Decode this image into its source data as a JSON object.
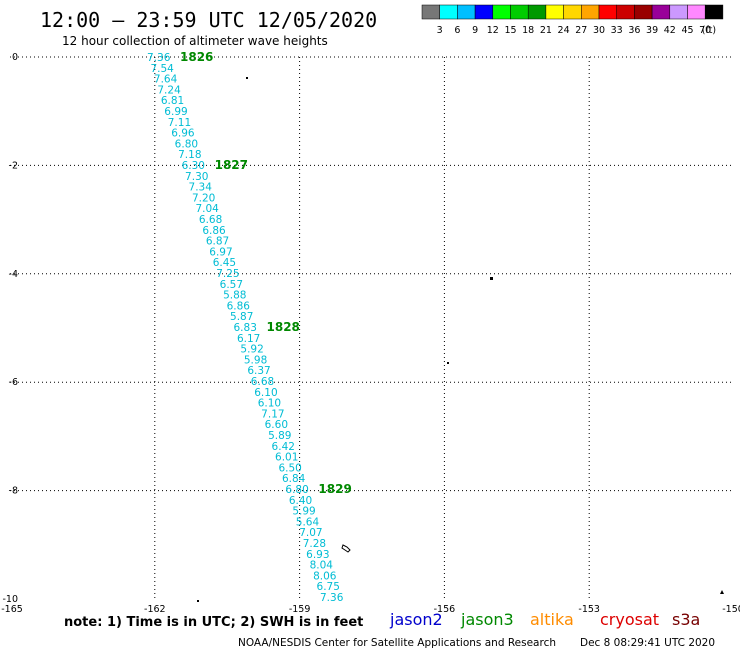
{
  "header": {
    "title": "12:00 — 23:59 UTC 12/05/2020",
    "subtitle": "12 hour collection of altimeter wave heights"
  },
  "colorbar": {
    "swatches": [
      "#777777",
      "#00ffff",
      "#00bfff",
      "#0000ff",
      "#00ff00",
      "#00cc00",
      "#009900",
      "#ffff00",
      "#ffd700",
      "#ffa500",
      "#ff0000",
      "#cc0000",
      "#990000",
      "#990099",
      "#cc99ff",
      "#ff88ff",
      "#000000"
    ],
    "labels": [
      "3",
      "6",
      "9",
      "12",
      "15",
      "18",
      "21",
      "24",
      "27",
      "30",
      "33",
      "36",
      "39",
      "42",
      "45",
      "70"
    ],
    "unit": "(ft)"
  },
  "axes": {
    "lon_ticks": [
      {
        "value": -165,
        "label": "-165"
      },
      {
        "value": -162,
        "label": "-162"
      },
      {
        "value": -159,
        "label": "-159"
      },
      {
        "value": -156,
        "label": "-156"
      },
      {
        "value": -153,
        "label": "-153"
      },
      {
        "value": -150,
        "label": "-150"
      }
    ],
    "lat_ticks": [
      {
        "value": 0,
        "label": "0"
      },
      {
        "value": -2,
        "label": "-2"
      },
      {
        "value": -4,
        "label": "-4"
      },
      {
        "value": -6,
        "label": "-6"
      },
      {
        "value": -8,
        "label": "-8"
      },
      {
        "value": -10,
        "label": "-10"
      }
    ],
    "lon_range": [
      -165,
      -150
    ],
    "lat_range": [
      -10,
      0
    ]
  },
  "track": {
    "color": "#00bcd4",
    "heights": [
      "7.36",
      "7.54",
      "7.64",
      "7.24",
      "6.81",
      "6.99",
      "7.11",
      "6.96",
      "6.80",
      "7.18",
      "6.30",
      "7.30",
      "7.34",
      "7.20",
      "7.04",
      "6.68",
      "6.86",
      "6.87",
      "6.97",
      "6.45",
      "7.25",
      "6.57",
      "5.88",
      "6.86",
      "5.87",
      "6.83",
      "6.17",
      "5.92",
      "5.98",
      "6.37",
      "6.68",
      "6.10",
      "6.10",
      "7.17",
      "6.60",
      "5.89",
      "6.42",
      "6.01",
      "6.50",
      "6.84",
      "6.80",
      "6.40",
      "5.99",
      "5.64",
      "7.07",
      "7.28",
      "6.93",
      "8.04",
      "8.06",
      "6.75",
      "7.36"
    ],
    "time_labels": [
      {
        "label": "1826",
        "index": 0
      },
      {
        "label": "1827",
        "index": 10
      },
      {
        "label": "1828",
        "index": 25
      },
      {
        "label": "1829",
        "index": 40
      }
    ],
    "time_color": "#008800"
  },
  "legend": {
    "note": "note: 1) Time is in UTC; 2) SWH is in feet",
    "satellites": [
      {
        "name": "jason2",
        "color": "#0000cc"
      },
      {
        "name": "jason3",
        "color": "#008800"
      },
      {
        "name": "altika",
        "color": "#ff8c00"
      },
      {
        "name": "cryosat",
        "color": "#dd0000"
      },
      {
        "name": "s3a",
        "color": "#770000"
      }
    ]
  },
  "footer": {
    "credit": "NOAA/NESDIS Center for Satellite Applications and Research",
    "timestamp": "Dec  8 08:29:41 UTC 2020"
  }
}
